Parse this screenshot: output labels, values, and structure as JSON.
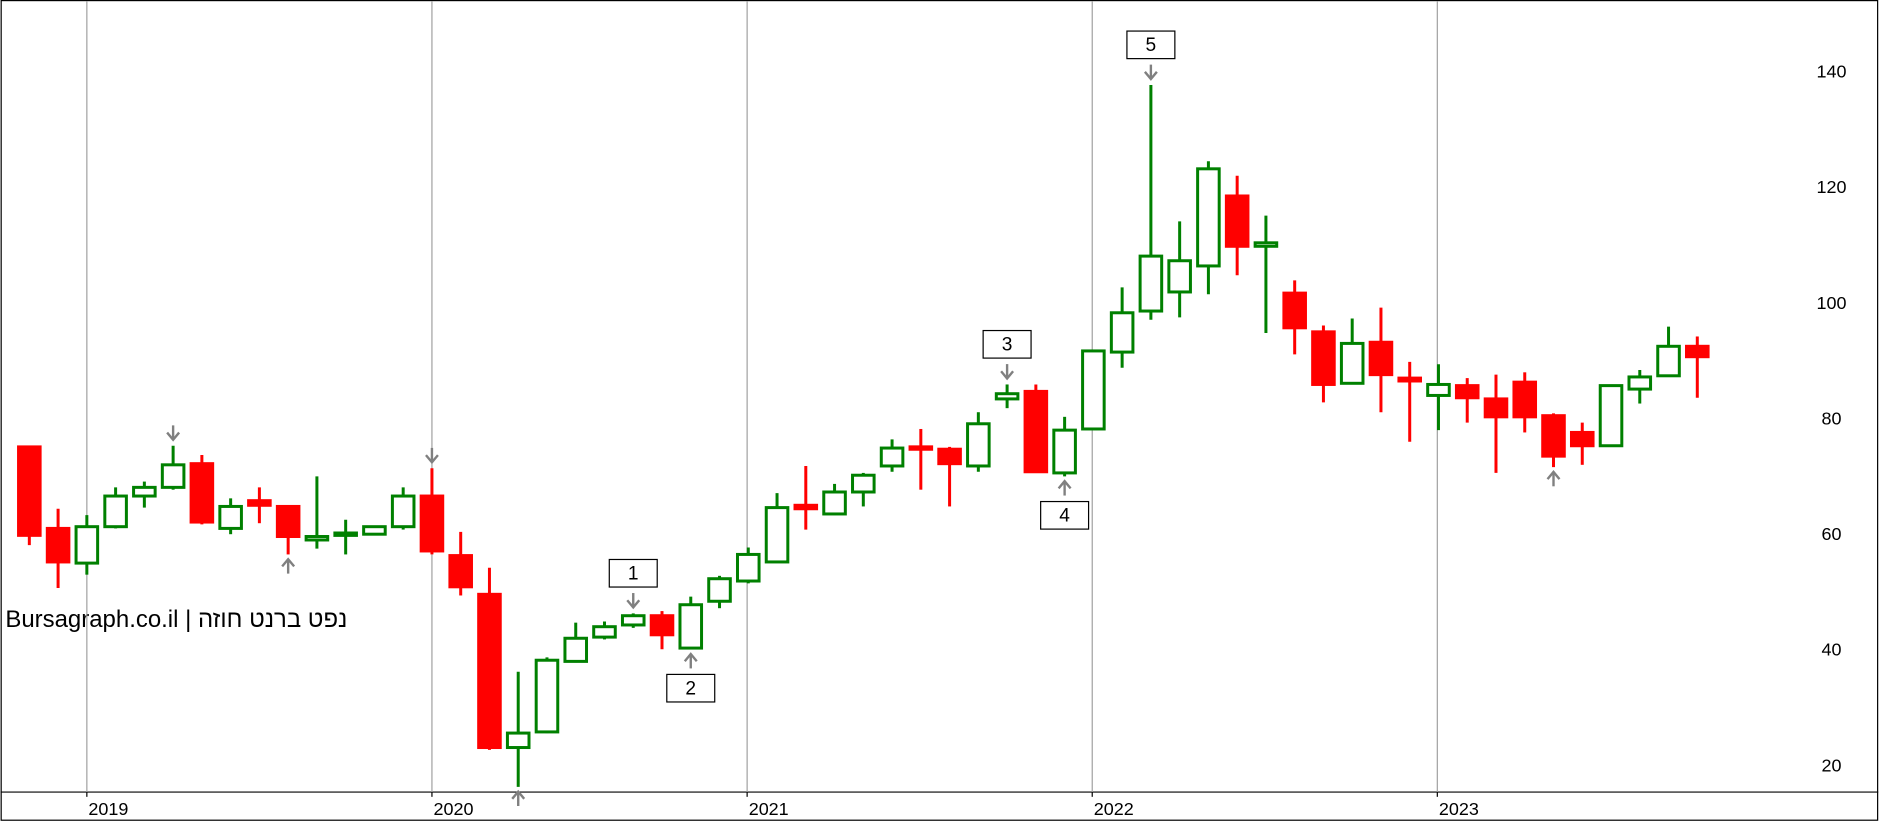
{
  "chart_data": {
    "type": "candlestick",
    "watermark": "Bursagraph.co.il | נפט ברנט חוזה",
    "open": [
      75.3,
      61.2,
      55.2,
      61.5,
      66.8,
      68.3,
      72.4,
      61.2,
      66.0,
      65.0,
      59.2,
      60.0,
      60.2,
      61.5,
      66.8,
      56.5,
      49.8,
      23.3,
      26.0,
      38.2,
      42.4,
      44.5,
      46.1,
      40.5,
      48.6,
      52.1,
      55.4,
      65.2,
      63.7,
      67.5,
      72.0,
      75.3,
      74.9,
      72.0,
      83.6,
      84.9,
      70.8,
      78.4,
      91.7,
      98.8,
      102.1,
      106.6,
      118.7,
      110.0,
      101.9,
      95.2,
      86.3,
      93.4,
      87.2,
      84.2,
      85.9,
      83.6,
      86.5,
      80.7,
      77.8,
      75.5,
      85.3,
      87.6,
      92.7
    ],
    "high": [
      75.5,
      64.6,
      63.5,
      68.3,
      69.3,
      75.5,
      73.9,
      66.4,
      68.3,
      65.2,
      70.2,
      62.7,
      61.7,
      68.3,
      71.6,
      60.6,
      54.4,
      36.4,
      38.9,
      44.9,
      45.1,
      46.5,
      46.9,
      49.4,
      53.0,
      57.9,
      67.3,
      72.0,
      68.9,
      70.8,
      76.6,
      78.4,
      75.3,
      81.3,
      86.1,
      86.1,
      80.5,
      92.1,
      102.9,
      137.9,
      114.3,
      124.7,
      122.2,
      115.3,
      104.1,
      96.3,
      97.5,
      99.4,
      90.0,
      89.6,
      87.2,
      87.8,
      88.2,
      81.1,
      79.5,
      86.1,
      88.6,
      96.1,
      94.4
    ],
    "low": [
      58.3,
      50.9,
      53.2,
      61.2,
      64.8,
      67.9,
      61.9,
      60.2,
      62.1,
      56.7,
      57.7,
      56.7,
      60.0,
      61.0,
      56.7,
      49.6,
      22.9,
      16.5,
      25.8,
      38.0,
      42.0,
      44.0,
      40.3,
      40.3,
      47.4,
      51.7,
      55.4,
      61.0,
      63.5,
      65.0,
      71.0,
      67.9,
      65.0,
      71.0,
      82.0,
      71.0,
      70.2,
      78.4,
      89.0,
      97.3,
      97.7,
      101.7,
      105.0,
      95.0,
      91.3,
      83.0,
      86.1,
      81.3,
      76.2,
      78.2,
      79.5,
      70.8,
      77.8,
      71.8,
      72.2,
      75.3,
      82.8,
      87.4,
      83.8
    ],
    "close": [
      60.0,
      55.4,
      61.5,
      66.8,
      68.3,
      72.2,
      62.3,
      65.0,
      65.2,
      59.8,
      59.8,
      60.4,
      61.5,
      66.8,
      57.3,
      51.1,
      23.3,
      25.8,
      38.4,
      42.2,
      44.2,
      46.1,
      42.8,
      48.0,
      52.5,
      56.7,
      64.8,
      64.6,
      67.5,
      70.4,
      75.1,
      74.9,
      72.4,
      79.3,
      84.5,
      71.0,
      78.2,
      91.9,
      98.5,
      108.3,
      107.5,
      123.4,
      110.0,
      110.6,
      95.9,
      86.1,
      93.2,
      87.8,
      86.7,
      86.1,
      83.8,
      80.5,
      80.5,
      73.7,
      75.5,
      85.9,
      87.4,
      92.7,
      90.9
    ],
    "up_color": "#008000",
    "down_color": "#ff0000",
    "ylim": [
      15.6,
      152.6
    ],
    "yticks": [
      20,
      40,
      60,
      80,
      100,
      120,
      140
    ],
    "xticks": [
      {
        "value": 2,
        "label": "2019"
      },
      {
        "value": 14,
        "label": "2020"
      },
      {
        "value": 24.96,
        "label": "2021"
      },
      {
        "value": 36.96,
        "label": "2022"
      },
      {
        "value": 48.96,
        "label": "2023"
      }
    ],
    "grid": true,
    "annotations": [
      {
        "text": "1",
        "index": 21,
        "position": "above"
      },
      {
        "text": "2",
        "index": 23,
        "position": "below"
      },
      {
        "text": "3",
        "index": 34,
        "position": "above"
      },
      {
        "text": "4",
        "index": 36,
        "position": "below"
      },
      {
        "text": "5",
        "index": 39,
        "position": "above"
      }
    ],
    "arrows": [
      {
        "index": 5,
        "position": "above"
      },
      {
        "index": 9,
        "position": "below"
      },
      {
        "index": 14,
        "position": "above"
      },
      {
        "index": 17,
        "position": "below"
      },
      {
        "index": 53,
        "position": "below"
      }
    ]
  }
}
